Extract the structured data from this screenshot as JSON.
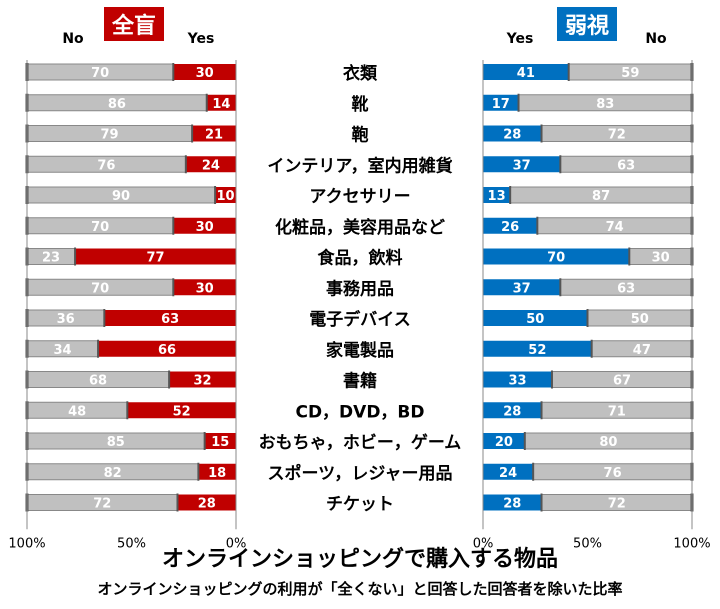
{
  "chart_data": {
    "type": "bar",
    "stacked": true,
    "orientation": "horizontal",
    "title": "オンラインショッピングで購入する物品",
    "subtitle": "オンラインショッピングの利用が「全くない」と回答した回答者を除いた比率",
    "categories": [
      "衣類",
      "靴",
      "鞄",
      "インテリア，室内用雑貨",
      "アクセサリー",
      "化粧品，美容用品など",
      "食品，飲料",
      "事務用品",
      "電子デバイス",
      "家電製品",
      "書籍",
      "CD，DVD，BD",
      "おもちゃ，ホビー，ゲーム",
      "スポーツ，レジャー用品",
      "チケット"
    ],
    "panels": [
      {
        "name": "全盲",
        "color": "#c00000",
        "yes_label": "Yes",
        "no_label": "No",
        "yes": [
          30,
          14,
          21,
          24,
          10,
          30,
          77,
          30,
          63,
          66,
          32,
          52,
          15,
          18,
          28
        ],
        "no": [
          70,
          86,
          79,
          76,
          90,
          70,
          23,
          70,
          36,
          34,
          68,
          48,
          85,
          82,
          72
        ],
        "xlim": [
          100,
          0
        ],
        "ticks": [
          "100%",
          "50%",
          "0%"
        ]
      },
      {
        "name": "弱視",
        "color": "#0070c0",
        "yes_label": "Yes",
        "no_label": "No",
        "yes": [
          41,
          17,
          28,
          37,
          13,
          26,
          70,
          37,
          50,
          52,
          33,
          28,
          20,
          24,
          28
        ],
        "no": [
          59,
          83,
          72,
          63,
          87,
          74,
          30,
          63,
          50,
          47,
          67,
          71,
          80,
          76,
          72
        ],
        "xlim": [
          0,
          100
        ],
        "ticks": [
          "0%",
          "50%",
          "100%"
        ]
      }
    ],
    "no_color": "#c0c0c0",
    "grid": false
  }
}
